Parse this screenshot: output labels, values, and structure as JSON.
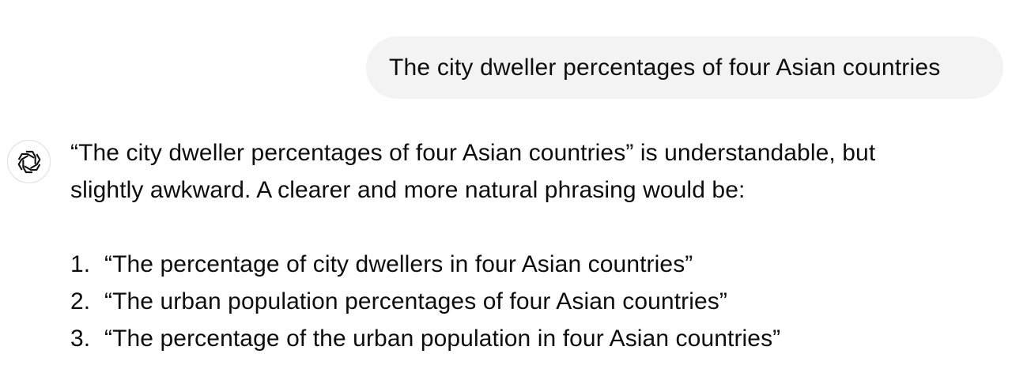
{
  "user_message": {
    "text": "The city dweller percentages of four Asian countries"
  },
  "assistant": {
    "avatar_icon": "openai-logo-icon",
    "line1": "“The city dweller percentages of four Asian countries” is understandable, but",
    "line2": "slightly awkward. A clearer and more natural phrasing would be:",
    "suggestions": [
      {
        "num": "1.",
        "text": "“The percentage of city dwellers in four Asian countries”"
      },
      {
        "num": "2.",
        "text": "“The urban population percentages of four Asian countries”"
      },
      {
        "num": "3.",
        "text": "“The percentage of the urban population in four Asian countries”"
      }
    ]
  },
  "colors": {
    "user_bubble_bg": "#f3f3f3",
    "text": "#0d0d0d",
    "avatar_border": "#dedede"
  }
}
